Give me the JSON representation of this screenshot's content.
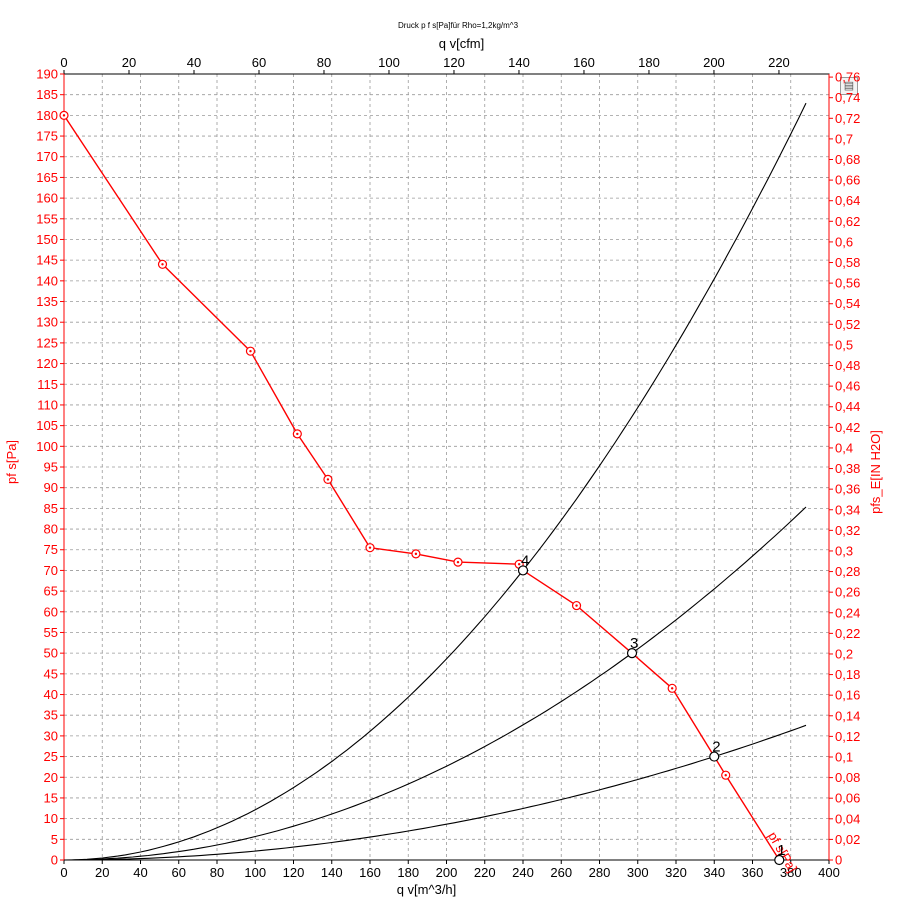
{
  "chart_data": {
    "type": "line",
    "title": "Druck p f s[Pa]für Rho=1,2kg/m^3",
    "xlabel": "q v[m^3/h]",
    "x2label": "q v[cfm]",
    "ylabel": "pf s[Pa]",
    "y2label": "pfs_E[IN H2O]",
    "xlim": [
      0,
      400
    ],
    "ylim": [
      0,
      190
    ],
    "x2lim": [
      0,
      235.4
    ],
    "y2lim": [
      0,
      0.763
    ],
    "xticks": [
      "0",
      "20",
      "40",
      "60",
      "80",
      "100",
      "120",
      "140",
      "160",
      "180",
      "200",
      "220",
      "240",
      "260",
      "280",
      "300",
      "320",
      "340",
      "360",
      "380",
      "400"
    ],
    "yticks": [
      "0",
      "5",
      "10",
      "15",
      "20",
      "25",
      "30",
      "35",
      "40",
      "45",
      "50",
      "55",
      "60",
      "65",
      "70",
      "75",
      "80",
      "85",
      "90",
      "95",
      "100",
      "105",
      "110",
      "115",
      "120",
      "125",
      "130",
      "135",
      "140",
      "145",
      "150",
      "155",
      "160",
      "165",
      "170",
      "175",
      "180",
      "185",
      "190"
    ],
    "x2ticks": [
      "0",
      "20",
      "40",
      "60",
      "80",
      "100",
      "120",
      "140",
      "160",
      "180",
      "200",
      "220"
    ],
    "y2ticks": [
      "0",
      "0,02",
      "0,04",
      "0,06",
      "0,08",
      "0,1",
      "0,12",
      "0,14",
      "0,16",
      "0,18",
      "0,2",
      "0,22",
      "0,24",
      "0,26",
      "0,28",
      "0,3",
      "0,32",
      "0,34",
      "0,36",
      "0,38",
      "0,4",
      "0,42",
      "0,44",
      "0,46",
      "0,48",
      "0,5",
      "0,52",
      "0,54",
      "0,56",
      "0,58",
      "0,6",
      "0,62",
      "0,64",
      "0,66",
      "0,68",
      "0,7",
      "0,72",
      "0,74",
      "0,76"
    ],
    "grid": true,
    "series": [
      {
        "name": "pf s[Pa]",
        "color": "#ff0000",
        "x": [
          0,
          51.5,
          97.5,
          122,
          138,
          160,
          184,
          206,
          238,
          240,
          268,
          297,
          318,
          340,
          346,
          374
        ],
        "y": [
          180,
          144,
          123,
          103,
          92,
          75.5,
          74,
          72,
          71.5,
          70,
          61.5,
          50,
          41.5,
          25,
          20.5,
          0
        ],
        "markers": [
          0,
          51.5,
          97.5,
          122,
          138,
          160,
          184,
          206,
          238,
          268,
          318,
          346
        ]
      }
    ],
    "system_curves": [
      {
        "color": "#000000",
        "k": 0.0012153
      },
      {
        "color": "#000000",
        "k": 0.00056689
      },
      {
        "color": "#000000",
        "k": 0.00021626
      }
    ],
    "operating_points": [
      {
        "label": "1",
        "x": 374,
        "y": 0
      },
      {
        "label": "2",
        "x": 340,
        "y": 25
      },
      {
        "label": "3",
        "x": 297,
        "y": 50
      },
      {
        "label": "4",
        "x": 240,
        "y": 70
      }
    ]
  }
}
